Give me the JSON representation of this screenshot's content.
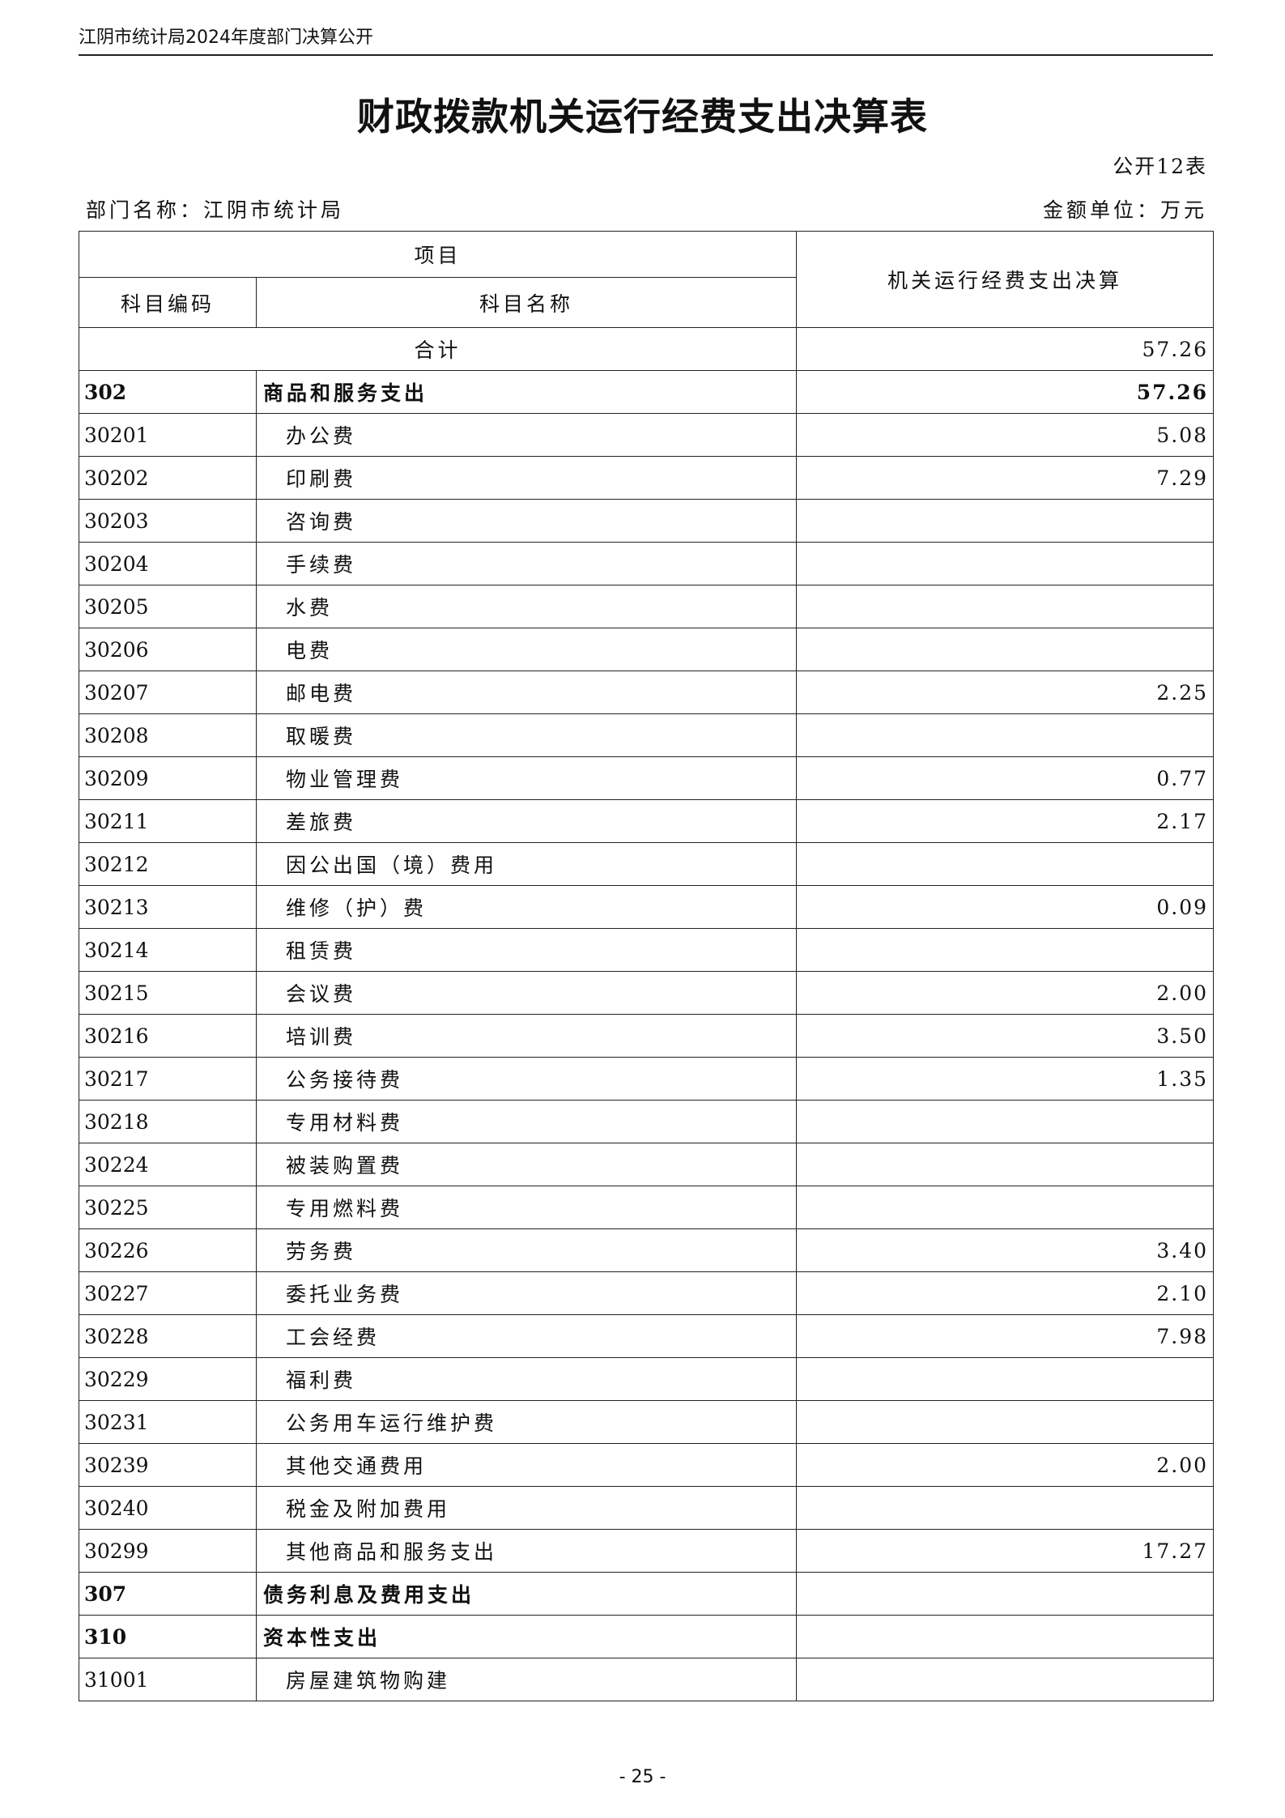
{
  "header": {
    "text": "江阴市统计局2024年度部门决算公开"
  },
  "title": "财政拨款机关运行经费支出决算表",
  "table_no": "公开12表",
  "dept": "部门名称：江阴市统计局",
  "unit": "金额单位：万元",
  "columns": {
    "item": "项目",
    "code": "科目编码",
    "name": "科目名称",
    "amount": "机关运行经费支出决算"
  },
  "total": {
    "label": "合计",
    "value": "57.26"
  },
  "rows": [
    {
      "code": "302",
      "name": "商品和服务支出",
      "value": "57.26",
      "bold": true
    },
    {
      "code": "30201",
      "name": "办公费",
      "value": "5.08"
    },
    {
      "code": "30202",
      "name": "印刷费",
      "value": "7.29"
    },
    {
      "code": "30203",
      "name": "咨询费",
      "value": ""
    },
    {
      "code": "30204",
      "name": "手续费",
      "value": ""
    },
    {
      "code": "30205",
      "name": "水费",
      "value": ""
    },
    {
      "code": "30206",
      "name": "电费",
      "value": ""
    },
    {
      "code": "30207",
      "name": "邮电费",
      "value": "2.25"
    },
    {
      "code": "30208",
      "name": "取暖费",
      "value": ""
    },
    {
      "code": "30209",
      "name": "物业管理费",
      "value": "0.77"
    },
    {
      "code": "30211",
      "name": "差旅费",
      "value": "2.17"
    },
    {
      "code": "30212",
      "name": "因公出国（境）费用",
      "value": ""
    },
    {
      "code": "30213",
      "name": "维修（护）费",
      "value": "0.09"
    },
    {
      "code": "30214",
      "name": "租赁费",
      "value": ""
    },
    {
      "code": "30215",
      "name": "会议费",
      "value": "2.00"
    },
    {
      "code": "30216",
      "name": "培训费",
      "value": "3.50"
    },
    {
      "code": "30217",
      "name": "公务接待费",
      "value": "1.35"
    },
    {
      "code": "30218",
      "name": "专用材料费",
      "value": ""
    },
    {
      "code": "30224",
      "name": "被装购置费",
      "value": ""
    },
    {
      "code": "30225",
      "name": "专用燃料费",
      "value": ""
    },
    {
      "code": "30226",
      "name": "劳务费",
      "value": "3.40"
    },
    {
      "code": "30227",
      "name": "委托业务费",
      "value": "2.10"
    },
    {
      "code": "30228",
      "name": "工会经费",
      "value": "7.98"
    },
    {
      "code": "30229",
      "name": "福利费",
      "value": ""
    },
    {
      "code": "30231",
      "name": "公务用车运行维护费",
      "value": ""
    },
    {
      "code": "30239",
      "name": "其他交通费用",
      "value": "2.00"
    },
    {
      "code": "30240",
      "name": "税金及附加费用",
      "value": ""
    },
    {
      "code": "30299",
      "name": "其他商品和服务支出",
      "value": "17.27"
    },
    {
      "code": "307",
      "name": "债务利息及费用支出",
      "value": "",
      "bold": true
    },
    {
      "code": "310",
      "name": "资本性支出",
      "value": "",
      "bold": true
    },
    {
      "code": "31001",
      "name": "房屋建筑物购建",
      "value": ""
    }
  ],
  "page_number": "- 25 -"
}
